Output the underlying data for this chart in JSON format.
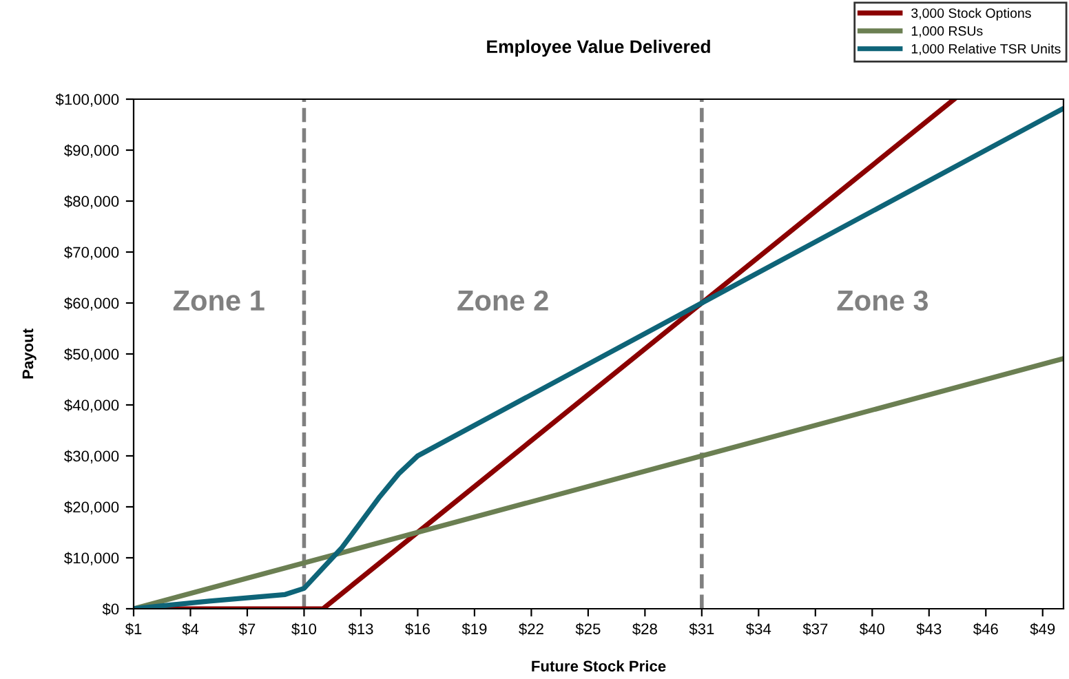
{
  "chart_data": {
    "type": "line",
    "title": "Employee Value Delivered",
    "xlabel": "Future Stock Price",
    "ylabel": "Payout",
    "series": [
      {
        "name": "3,000 Stock Options",
        "color": "#8b0000",
        "x": [
          1,
          11,
          31,
          44.33
        ],
        "values": [
          0,
          0,
          60000,
          100000
        ]
      },
      {
        "name": "1,000 RSUs",
        "color": "#6b7f52",
        "x": [
          1,
          31,
          50
        ],
        "values": [
          0,
          30000,
          49000
        ]
      },
      {
        "name": "1,000 Relative TSR Units",
        "color": "#0e6478",
        "x": [
          1,
          5,
          9,
          10,
          11,
          12,
          13,
          14,
          15,
          16,
          31,
          50
        ],
        "values": [
          0,
          1500,
          2800,
          4000,
          8000,
          12000,
          17000,
          22000,
          26500,
          30000,
          60000,
          98000
        ]
      }
    ],
    "xlim": [
      1,
      50.1
    ],
    "xticks": [
      {
        "value": 1,
        "label": "$1"
      },
      {
        "value": 4,
        "label": "$4"
      },
      {
        "value": 7,
        "label": "$7"
      },
      {
        "value": 10,
        "label": "$10"
      },
      {
        "value": 13,
        "label": "$13"
      },
      {
        "value": 16,
        "label": "$16"
      },
      {
        "value": 19,
        "label": "$19"
      },
      {
        "value": 22,
        "label": "$22"
      },
      {
        "value": 25,
        "label": "$25"
      },
      {
        "value": 28,
        "label": "$28"
      },
      {
        "value": 31,
        "label": "$31"
      },
      {
        "value": 34,
        "label": "$34"
      },
      {
        "value": 37,
        "label": "$37"
      },
      {
        "value": 40,
        "label": "$40"
      },
      {
        "value": 43,
        "label": "$43"
      },
      {
        "value": 46,
        "label": "$46"
      },
      {
        "value": 49,
        "label": "$49"
      }
    ],
    "ylim": [
      0,
      100000
    ],
    "yticks": [
      {
        "value": 0,
        "label": "$0"
      },
      {
        "value": 10000,
        "label": "$10,000"
      },
      {
        "value": 20000,
        "label": "$20,000"
      },
      {
        "value": 30000,
        "label": "$30,000"
      },
      {
        "value": 40000,
        "label": "$40,000"
      },
      {
        "value": 50000,
        "label": "$50,000"
      },
      {
        "value": 60000,
        "label": "$60,000"
      },
      {
        "value": 70000,
        "label": "$70,000"
      },
      {
        "value": 80000,
        "label": "$80,000"
      },
      {
        "value": 90000,
        "label": "$90,000"
      },
      {
        "value": 100000,
        "label": "$100,000"
      }
    ],
    "ref_lines": [
      {
        "axis": "x",
        "value": 10,
        "color": "#808080",
        "line_style": "dashed"
      },
      {
        "axis": "x",
        "value": 31,
        "color": "#808080",
        "line_style": "dashed"
      }
    ],
    "annotations": [
      "Zone 1",
      "Zone 2",
      "Zone 3"
    ],
    "grid": false,
    "legend": "top right",
    "marker": "none",
    "line_style": "solid"
  }
}
